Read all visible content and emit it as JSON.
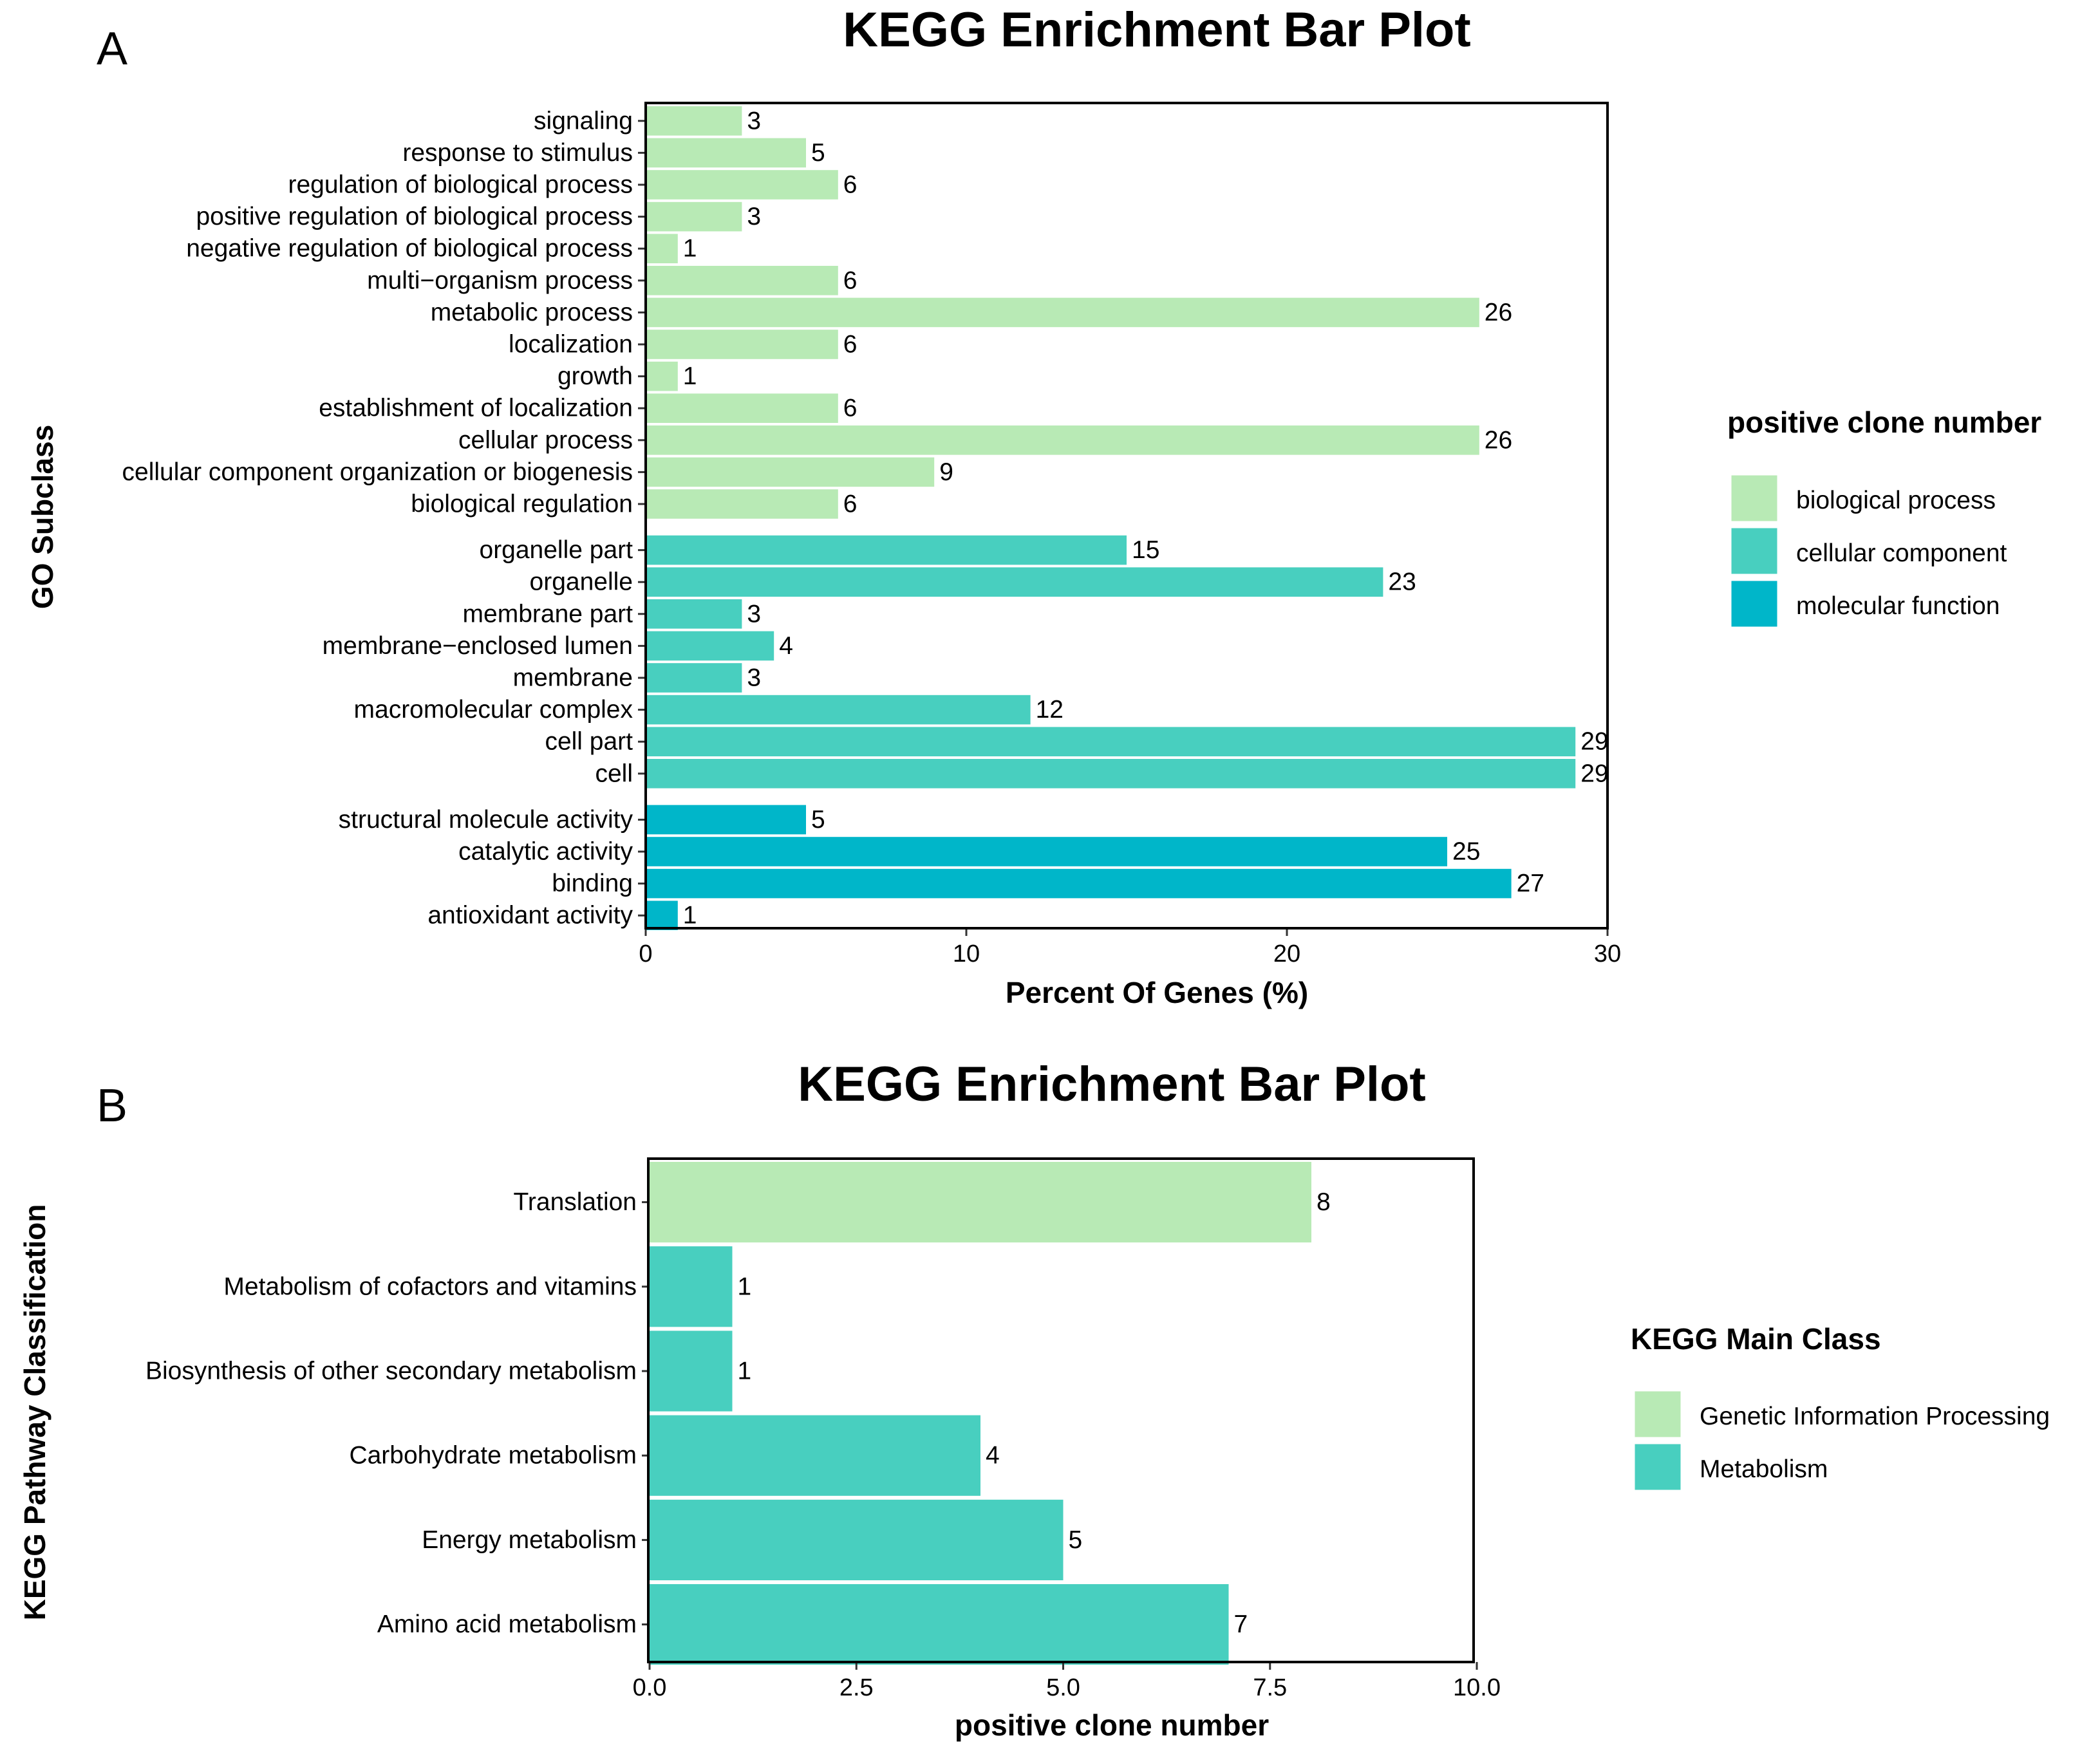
{
  "colors": {
    "biological_process": "#b8eab5",
    "cellular_component": "#48cfbf",
    "molecular_function": "#00b6c9",
    "genetic_information_processing": "#b8eab5",
    "metabolism": "#48cfbf"
  },
  "chart_data": [
    {
      "panel": "A",
      "type": "bar",
      "orientation": "horizontal",
      "title": "KEGG Enrichment Bar Plot",
      "xlabel": "Percent Of Genes (%)",
      "ylabel": "GO Subclass",
      "xlim": [
        0,
        30
      ],
      "xticks": [
        "0",
        "10",
        "20",
        "30"
      ],
      "xtick_values": [
        0,
        10,
        20,
        30
      ],
      "legend": {
        "title": "positive clone number",
        "position": "right",
        "items": [
          "biological process",
          "cellular component",
          "molecular function"
        ]
      },
      "groups": [
        {
          "name": "biological process",
          "categories": [
            "signaling",
            "response to stimulus",
            "regulation of biological process",
            "positive regulation of biological process ",
            "negative regulation of biological process ",
            "multi−organism process",
            "metabolic process",
            "localization",
            "growth",
            "establishment of localization",
            "cellular process",
            "cellular component organization or biogenesis",
            "biological regulation"
          ],
          "values": [
            3,
            5,
            6,
            3,
            1,
            6,
            26,
            6,
            1,
            6,
            26,
            9,
            6
          ]
        },
        {
          "name": "cellular component",
          "categories": [
            "organelle part",
            "organelle",
            "membrane part",
            "membrane−enclosed lumen",
            "membrane",
            "macromolecular complex",
            "cell part",
            "cell"
          ],
          "values": [
            15,
            23,
            3,
            4,
            3,
            12,
            29,
            29
          ]
        },
        {
          "name": "molecular function",
          "categories": [
            "structural molecule activity",
            "catalytic activity",
            "binding",
            "antioxidant activity"
          ],
          "values": [
            5,
            25,
            27,
            1
          ]
        }
      ]
    },
    {
      "panel": "B",
      "type": "bar",
      "orientation": "horizontal",
      "title": "KEGG Enrichment Bar Plot",
      "xlabel": "positive clone number",
      "ylabel": "KEGG Pathway Classification",
      "xlim": [
        0,
        10
      ],
      "xticks": [
        "0.0",
        "2.5",
        "5.0",
        "7.5",
        "10.0"
      ],
      "xtick_values": [
        0,
        2.5,
        5,
        7.5,
        10
      ],
      "legend": {
        "title": "KEGG Main Class",
        "position": "right",
        "items": [
          "Genetic Information Processing",
          "Metabolism"
        ]
      },
      "groups": [
        {
          "name": "Genetic Information Processing",
          "categories": [
            "Translation"
          ],
          "values": [
            8
          ]
        },
        {
          "name": "Metabolism",
          "categories": [
            "Metabolism of cofactors and vitamins",
            "Biosynthesis of other secondary metabolism",
            "Carbohydrate metabolism",
            "Energy metabolism",
            "Amino acid metabolism"
          ],
          "values": [
            1,
            1,
            4,
            5,
            7
          ]
        }
      ]
    }
  ]
}
